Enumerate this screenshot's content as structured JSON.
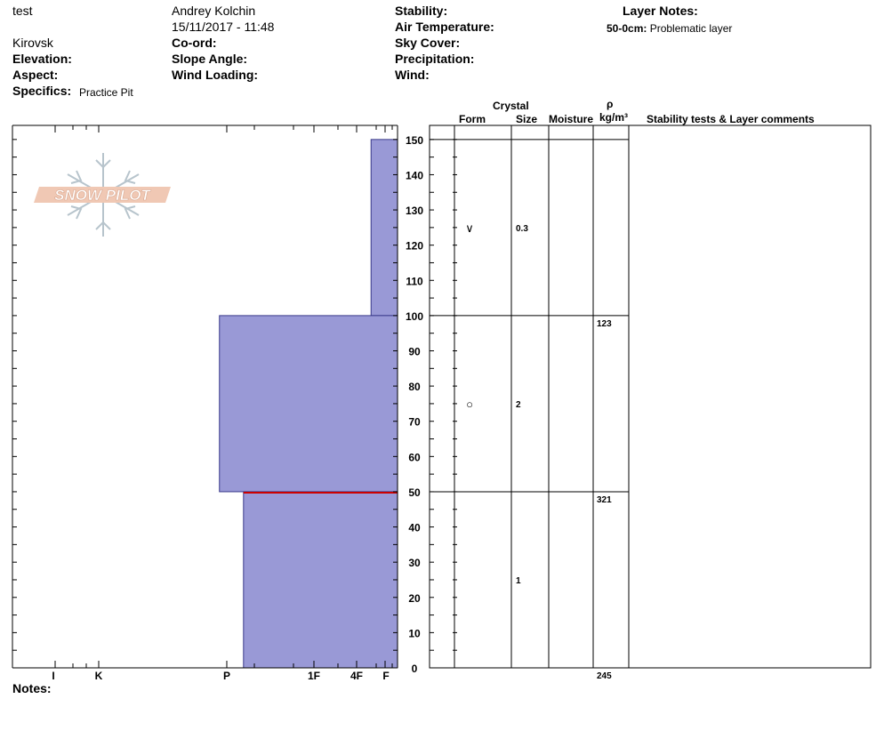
{
  "header": {
    "location": "test",
    "observer": "Andrey Kolchin",
    "datetime": "15/11/2017 - 11:48",
    "region": "Kirovsk",
    "labels": {
      "elevation": "Elevation:",
      "aspect": "Aspect:",
      "specifics": "Specifics:",
      "coord": "Co-ord:",
      "slope_angle": "Slope Angle:",
      "wind_loading": "Wind Loading:",
      "stability": "Stability:",
      "air_temperature": "Air Temperature:",
      "sky_cover": "Sky Cover:",
      "precipitation": "Precipitation:",
      "wind": "Wind:",
      "layer_notes": "Layer Notes:",
      "notes": "Notes:"
    },
    "specifics_value": "Practice Pit",
    "layer_note_range": "50-0cm:",
    "layer_note_text": "Problematic layer"
  },
  "logo_text": "SNOW PILOT",
  "columns": {
    "crystal": "Crystal",
    "form": "Form",
    "size": "Size",
    "moisture": "Moisture",
    "rho": "ρ",
    "density_unit": "kg/m³",
    "stability": "Stability tests & Layer comments"
  },
  "chart_data": {
    "type": "bar",
    "title": "",
    "ylabel": "",
    "xlabel": "",
    "ylim": [
      0,
      154
    ],
    "y_ticks": [
      0,
      10,
      20,
      30,
      40,
      50,
      60,
      70,
      80,
      90,
      100,
      110,
      120,
      130,
      140,
      150
    ],
    "hardness_scale": [
      "I",
      "K",
      "P",
      "1F",
      "4F",
      "F"
    ],
    "hardness_scale_values": [
      6,
      5,
      4,
      3,
      2,
      1
    ],
    "hardness_range": [
      1,
      8
    ],
    "layers": [
      {
        "bottom": 100,
        "top": 150,
        "hardness_value": 0.55,
        "form": "∨",
        "size": "0.3",
        "density": ""
      },
      {
        "bottom": 50,
        "top": 100,
        "hardness_value": 3.7,
        "form": "○",
        "size": "2",
        "density": "123"
      },
      {
        "bottom": 0,
        "top": 50,
        "hardness_value": 3.2,
        "form": "",
        "size": "1",
        "density": "321"
      }
    ],
    "density_bottom": "245",
    "problem_layer_depth": 50,
    "bar_color": "#9999d6",
    "problem_line_color": "#cc0000"
  }
}
